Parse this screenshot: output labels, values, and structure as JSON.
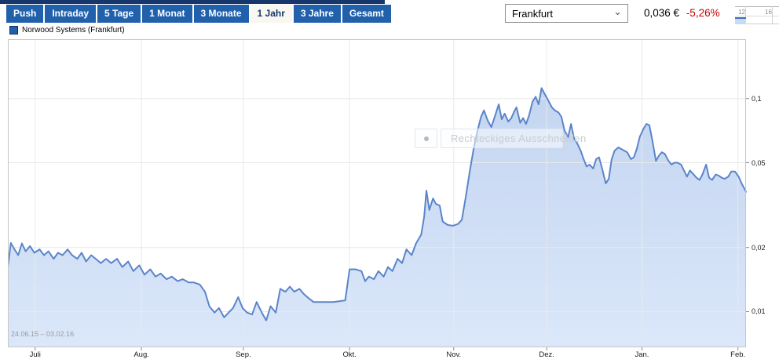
{
  "toolbar": {
    "buttons": [
      {
        "label": "Push",
        "active": false
      },
      {
        "label": "Intraday",
        "active": false
      },
      {
        "label": "5 Tage",
        "active": false
      },
      {
        "label": "1 Monat",
        "active": false
      },
      {
        "label": "3 Monate",
        "active": false
      },
      {
        "label": "1 Jahr",
        "active": true
      },
      {
        "label": "3 Jahre",
        "active": false
      },
      {
        "label": "Gesamt",
        "active": false
      }
    ]
  },
  "exchange_select": {
    "value": "Frankfurt"
  },
  "quote": {
    "price": "0,036 €",
    "change": "-5,26%",
    "change_color": "#c40000"
  },
  "legend": {
    "series_label": "Norwood Systems (Frankfurt)",
    "swatch_color": "#2161ac"
  },
  "snip_overlay": {
    "text": "Rechteckiges Ausschneiden"
  },
  "mini_chart": {
    "tick_labels": [
      "12",
      "16"
    ]
  },
  "chart_data": {
    "type": "area",
    "series_name": "Norwood Systems (Frankfurt)",
    "date_range_label": "24.06.15 – 03.02.16",
    "unit": "EUR",
    "last_price": 0.036,
    "change_pct": -5.26,
    "y_scale": "log",
    "y_domain": [
      0.0068,
      0.19
    ],
    "grid": true,
    "line_color": "#5b85c9",
    "fill_color_top": "#c3d5f0",
    "fill_color_bottom": "#dbe7fa",
    "x_ticks": [
      {
        "label": "Juli",
        "pos": 0.037
      },
      {
        "label": "Aug.",
        "pos": 0.181
      },
      {
        "label": "Sep.",
        "pos": 0.319
      },
      {
        "label": "Okt.",
        "pos": 0.463
      },
      {
        "label": "Nov.",
        "pos": 0.604
      },
      {
        "label": "Dez.",
        "pos": 0.73
      },
      {
        "label": "Jan.",
        "pos": 0.859
      },
      {
        "label": "Feb.",
        "pos": 0.989
      }
    ],
    "y_ticks": [
      {
        "label": "0,1",
        "value": 0.1
      },
      {
        "label": "0,05",
        "value": 0.05
      },
      {
        "label": "0,02",
        "value": 0.02
      },
      {
        "label": "0,01",
        "value": 0.01
      }
    ],
    "points": [
      [
        0,
        0.0162
      ],
      [
        0.004,
        0.021
      ],
      [
        0.009,
        0.0196
      ],
      [
        0.014,
        0.0184
      ],
      [
        0.019,
        0.0209
      ],
      [
        0.024,
        0.0192
      ],
      [
        0.03,
        0.0203
      ],
      [
        0.036,
        0.0189
      ],
      [
        0.043,
        0.0196
      ],
      [
        0.049,
        0.0184
      ],
      [
        0.055,
        0.0192
      ],
      [
        0.062,
        0.0177
      ],
      [
        0.068,
        0.0189
      ],
      [
        0.074,
        0.0184
      ],
      [
        0.081,
        0.0196
      ],
      [
        0.087,
        0.0184
      ],
      [
        0.094,
        0.0177
      ],
      [
        0.1,
        0.0189
      ],
      [
        0.106,
        0.0172
      ],
      [
        0.113,
        0.0184
      ],
      [
        0.119,
        0.0177
      ],
      [
        0.126,
        0.0169
      ],
      [
        0.133,
        0.0177
      ],
      [
        0.14,
        0.0169
      ],
      [
        0.148,
        0.0177
      ],
      [
        0.155,
        0.0162
      ],
      [
        0.163,
        0.0172
      ],
      [
        0.17,
        0.0155
      ],
      [
        0.178,
        0.0165
      ],
      [
        0.185,
        0.0149
      ],
      [
        0.193,
        0.0158
      ],
      [
        0.2,
        0.0146
      ],
      [
        0.207,
        0.0151
      ],
      [
        0.215,
        0.0142
      ],
      [
        0.222,
        0.0146
      ],
      [
        0.23,
        0.0139
      ],
      [
        0.237,
        0.0142
      ],
      [
        0.245,
        0.0137
      ],
      [
        0.252,
        0.0137
      ],
      [
        0.26,
        0.0134
      ],
      [
        0.267,
        0.0124
      ],
      [
        0.273,
        0.0106
      ],
      [
        0.28,
        0.0099
      ],
      [
        0.286,
        0.0104
      ],
      [
        0.293,
        0.0094
      ],
      [
        0.299,
        0.0099
      ],
      [
        0.305,
        0.0104
      ],
      [
        0.312,
        0.0117
      ],
      [
        0.318,
        0.0104
      ],
      [
        0.324,
        0.0099
      ],
      [
        0.331,
        0.0097
      ],
      [
        0.337,
        0.0111
      ],
      [
        0.344,
        0.0099
      ],
      [
        0.35,
        0.0091
      ],
      [
        0.356,
        0.0106
      ],
      [
        0.363,
        0.0099
      ],
      [
        0.369,
        0.0128
      ],
      [
        0.376,
        0.0124
      ],
      [
        0.382,
        0.0131
      ],
      [
        0.388,
        0.0124
      ],
      [
        0.395,
        0.0128
      ],
      [
        0.401,
        0.0121
      ],
      [
        0.407,
        0.0116
      ],
      [
        0.414,
        0.0111
      ],
      [
        0.426,
        0.0111
      ],
      [
        0.441,
        0.0111
      ],
      [
        0.457,
        0.0113
      ],
      [
        0.463,
        0.0158
      ],
      [
        0.471,
        0.0158
      ],
      [
        0.479,
        0.0155
      ],
      [
        0.484,
        0.0139
      ],
      [
        0.489,
        0.0146
      ],
      [
        0.496,
        0.0142
      ],
      [
        0.502,
        0.0155
      ],
      [
        0.509,
        0.0146
      ],
      [
        0.515,
        0.0162
      ],
      [
        0.521,
        0.0155
      ],
      [
        0.528,
        0.0177
      ],
      [
        0.534,
        0.0169
      ],
      [
        0.54,
        0.0196
      ],
      [
        0.547,
        0.0184
      ],
      [
        0.553,
        0.0209
      ],
      [
        0.56,
        0.023
      ],
      [
        0.564,
        0.028
      ],
      [
        0.567,
        0.037
      ],
      [
        0.571,
        0.03
      ],
      [
        0.576,
        0.034
      ],
      [
        0.58,
        0.032
      ],
      [
        0.585,
        0.0315
      ],
      [
        0.589,
        0.0265
      ],
      [
        0.596,
        0.0255
      ],
      [
        0.603,
        0.0253
      ],
      [
        0.61,
        0.0258
      ],
      [
        0.615,
        0.027
      ],
      [
        0.62,
        0.034
      ],
      [
        0.626,
        0.046
      ],
      [
        0.631,
        0.058
      ],
      [
        0.636,
        0.07
      ],
      [
        0.641,
        0.082
      ],
      [
        0.645,
        0.088
      ],
      [
        0.65,
        0.079
      ],
      [
        0.655,
        0.0735
      ],
      [
        0.661,
        0.085
      ],
      [
        0.665,
        0.094
      ],
      [
        0.669,
        0.08
      ],
      [
        0.673,
        0.085
      ],
      [
        0.678,
        0.078
      ],
      [
        0.682,
        0.081
      ],
      [
        0.686,
        0.087
      ],
      [
        0.689,
        0.091
      ],
      [
        0.694,
        0.077
      ],
      [
        0.698,
        0.081
      ],
      [
        0.702,
        0.076
      ],
      [
        0.706,
        0.083
      ],
      [
        0.711,
        0.097
      ],
      [
        0.715,
        0.102
      ],
      [
        0.719,
        0.094
      ],
      [
        0.723,
        0.112
      ],
      [
        0.728,
        0.104
      ],
      [
        0.732,
        0.098
      ],
      [
        0.737,
        0.091
      ],
      [
        0.741,
        0.088
      ],
      [
        0.746,
        0.086
      ],
      [
        0.75,
        0.082
      ],
      [
        0.754,
        0.071
      ],
      [
        0.759,
        0.066
      ],
      [
        0.763,
        0.076
      ],
      [
        0.767,
        0.065
      ],
      [
        0.771,
        0.062
      ],
      [
        0.776,
        0.057
      ],
      [
        0.78,
        0.052
      ],
      [
        0.784,
        0.048
      ],
      [
        0.788,
        0.049
      ],
      [
        0.793,
        0.047
      ],
      [
        0.797,
        0.052
      ],
      [
        0.801,
        0.053
      ],
      [
        0.805,
        0.047
      ],
      [
        0.81,
        0.04
      ],
      [
        0.814,
        0.042
      ],
      [
        0.818,
        0.052
      ],
      [
        0.822,
        0.057
      ],
      [
        0.827,
        0.059
      ],
      [
        0.831,
        0.058
      ],
      [
        0.835,
        0.057
      ],
      [
        0.839,
        0.056
      ],
      [
        0.844,
        0.052
      ],
      [
        0.848,
        0.053
      ],
      [
        0.852,
        0.058
      ],
      [
        0.856,
        0.066
      ],
      [
        0.861,
        0.072
      ],
      [
        0.865,
        0.076
      ],
      [
        0.869,
        0.075
      ],
      [
        0.873,
        0.064
      ],
      [
        0.878,
        0.051
      ],
      [
        0.882,
        0.054
      ],
      [
        0.886,
        0.056
      ],
      [
        0.89,
        0.055
      ],
      [
        0.895,
        0.051
      ],
      [
        0.899,
        0.049
      ],
      [
        0.903,
        0.05
      ],
      [
        0.907,
        0.05
      ],
      [
        0.912,
        0.049
      ],
      [
        0.916,
        0.046
      ],
      [
        0.92,
        0.043
      ],
      [
        0.924,
        0.046
      ],
      [
        0.929,
        0.044
      ],
      [
        0.933,
        0.0425
      ],
      [
        0.937,
        0.0415
      ],
      [
        0.941,
        0.044
      ],
      [
        0.946,
        0.049
      ],
      [
        0.95,
        0.0425
      ],
      [
        0.954,
        0.0415
      ],
      [
        0.959,
        0.044
      ],
      [
        0.963,
        0.0435
      ],
      [
        0.967,
        0.0425
      ],
      [
        0.971,
        0.042
      ],
      [
        0.976,
        0.043
      ],
      [
        0.98,
        0.0455
      ],
      [
        0.985,
        0.0455
      ],
      [
        0.99,
        0.043
      ],
      [
        0.994,
        0.04
      ],
      [
        1,
        0.0365
      ]
    ]
  }
}
